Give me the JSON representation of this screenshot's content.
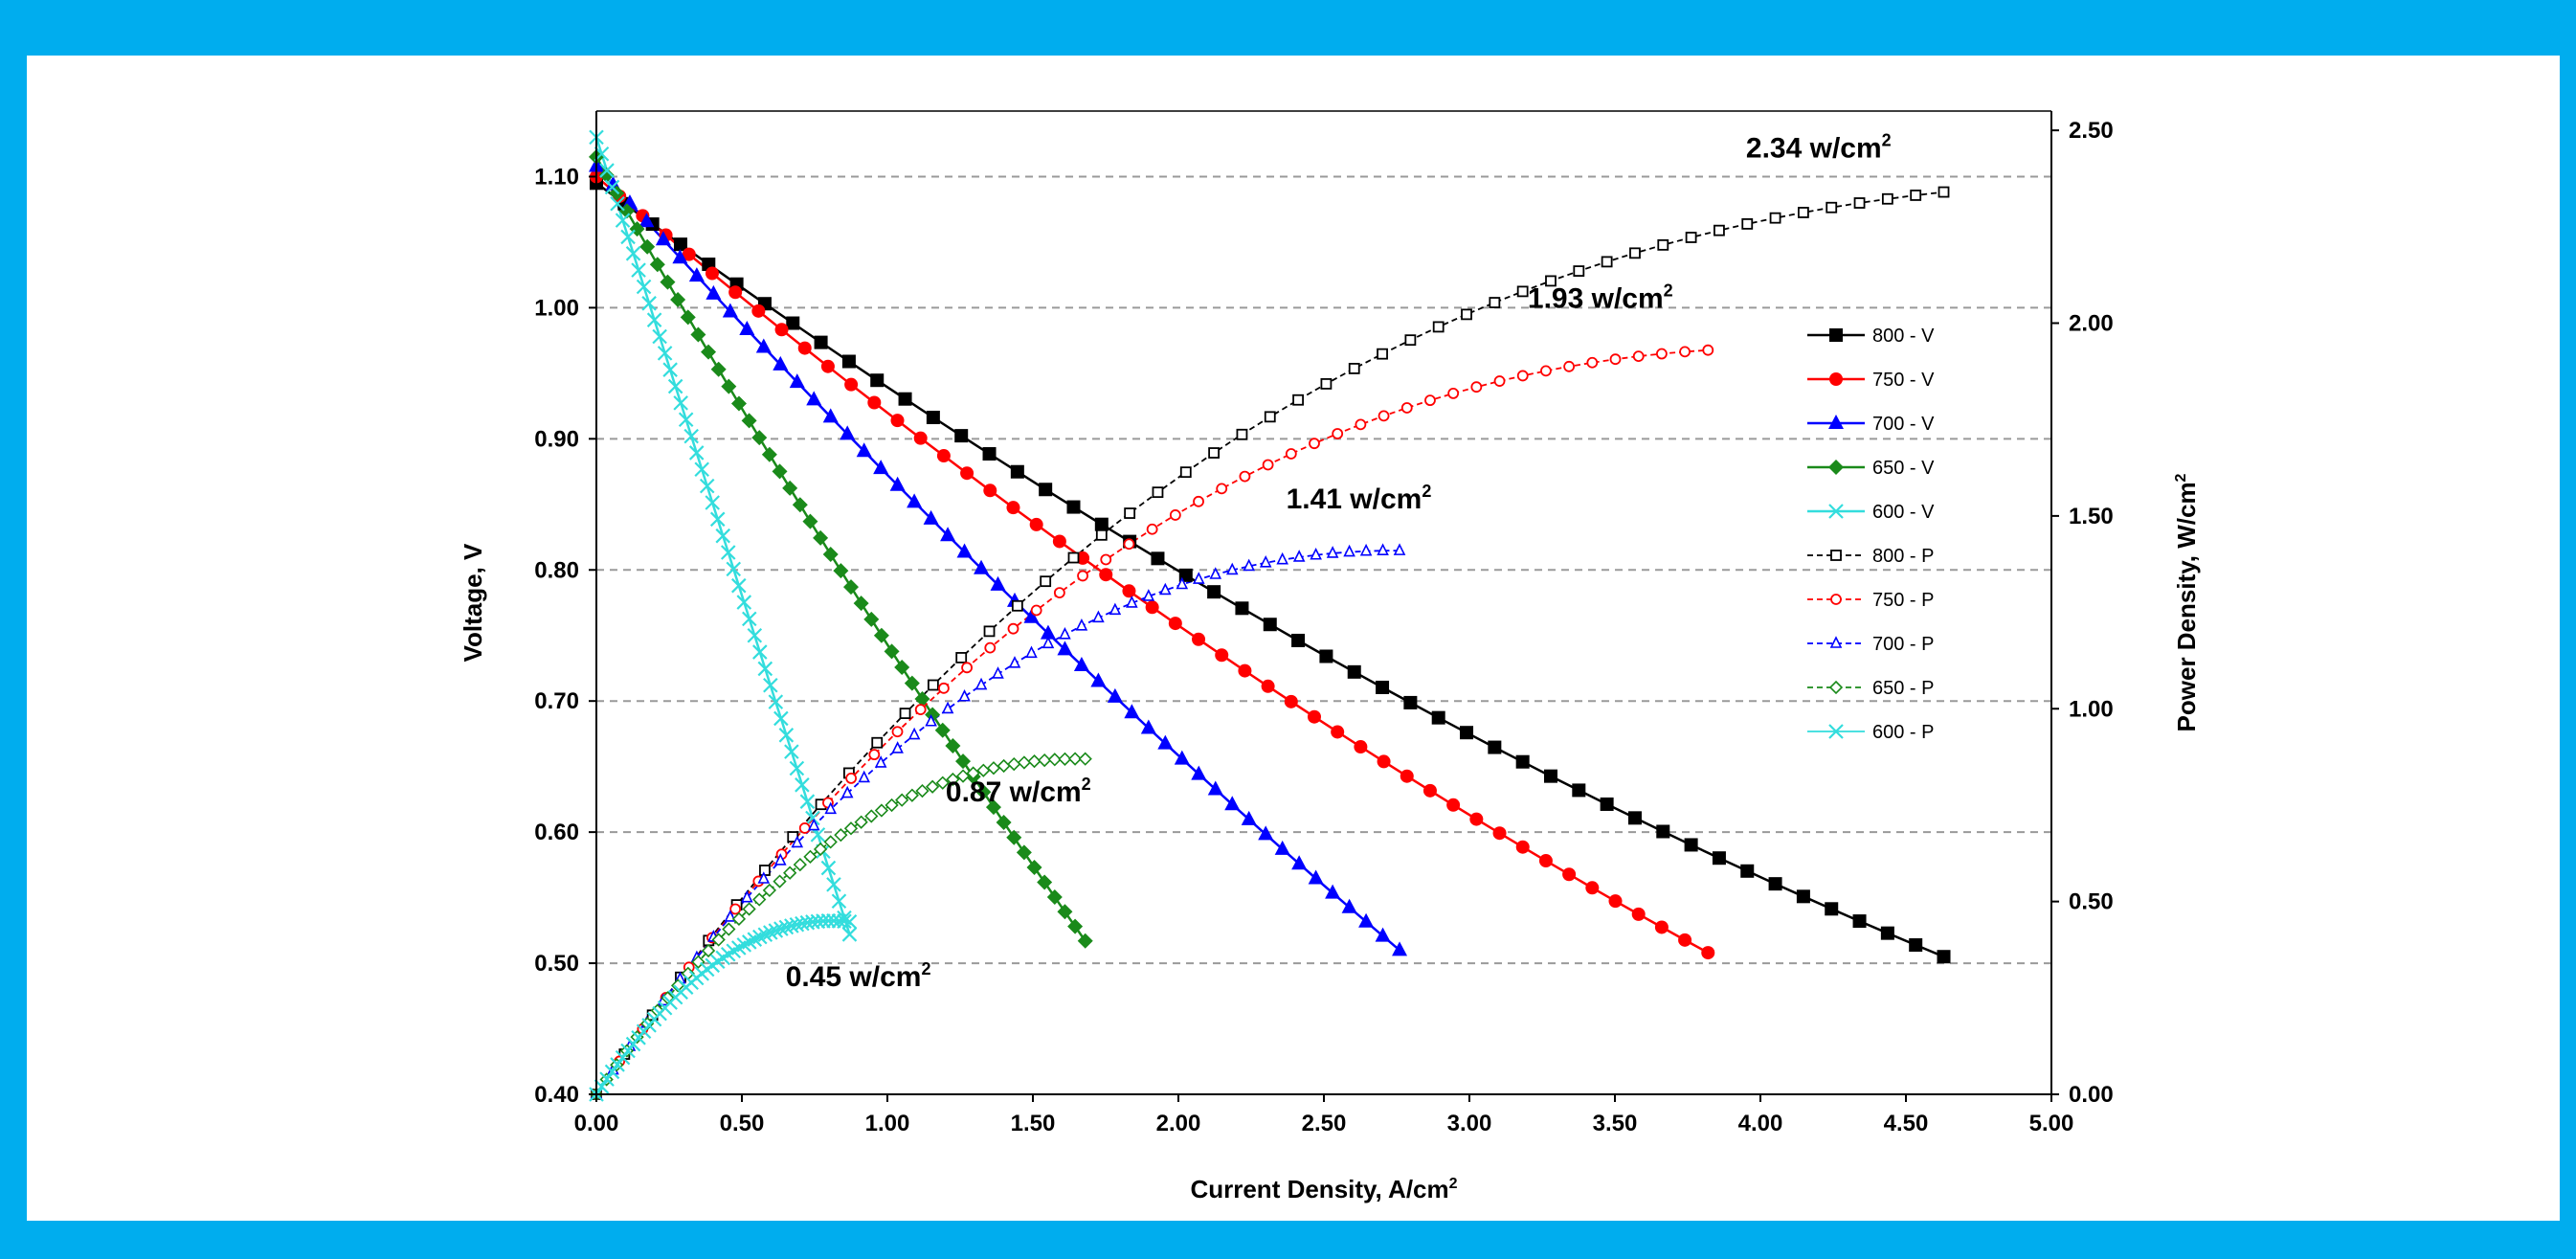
{
  "chart_data": {
    "type": "line",
    "xlabel": "Current Density, A/cm",
    "xlabel_sup": "2",
    "ylabel": "Voltage, V",
    "y2label": "Power Density, W/cm",
    "y2label_sup": "2",
    "xlim": [
      0,
      5
    ],
    "ylim": [
      0.4,
      1.15
    ],
    "y2lim": [
      0,
      2.55
    ],
    "x_ticks": [
      "0.00",
      "0.50",
      "1.00",
      "1.50",
      "2.00",
      "2.50",
      "3.00",
      "3.50",
      "4.00",
      "4.50",
      "5.00"
    ],
    "y_ticks": [
      "0.40",
      "0.50",
      "0.60",
      "0.70",
      "0.80",
      "0.90",
      "1.00",
      "1.10"
    ],
    "y2_ticks": [
      "0.00",
      "0.50",
      "1.00",
      "1.50",
      "2.00",
      "2.50"
    ],
    "grid": "horizontal dashed",
    "legend_position": "right",
    "series": [
      {
        "name": "800 - V",
        "axis": "left",
        "color": "#000000",
        "marker": "square-filled",
        "x_max": 4.63,
        "v0": 1.095,
        "v_end": 0.505,
        "k": 0.22
      },
      {
        "name": "750 - V",
        "axis": "left",
        "color": "#ff0000",
        "marker": "circle-filled",
        "x_max": 3.82,
        "v0": 1.1,
        "v_end": 0.508,
        "k": 0.18
      },
      {
        "name": "700 - V",
        "axis": "left",
        "color": "#0000ff",
        "marker": "triangle-filled",
        "x_max": 2.76,
        "v0": 1.108,
        "v_end": 0.51,
        "k": 0.12
      },
      {
        "name": "650 - V",
        "axis": "left",
        "color": "#1a8a1a",
        "marker": "diamond-filled",
        "x_max": 1.68,
        "v0": 1.115,
        "v_end": 0.517,
        "k": 0.1
      },
      {
        "name": "600 - V",
        "axis": "left",
        "color": "#33dddd",
        "marker": "x",
        "x_max": 0.87,
        "v0": 1.13,
        "v_end": 0.522,
        "k": 0.0
      },
      {
        "name": "800 - P",
        "axis": "right",
        "color": "#000000",
        "marker": "square-open",
        "dashed": true,
        "x_max": 4.63,
        "p_max": 2.34
      },
      {
        "name": "750 - P",
        "axis": "right",
        "color": "#ff0000",
        "marker": "circle-open",
        "dashed": true,
        "x_max": 3.82,
        "p_max": 1.93
      },
      {
        "name": "700 - P",
        "axis": "right",
        "color": "#0000ff",
        "marker": "triangle-open",
        "dashed": true,
        "x_max": 2.76,
        "p_max": 1.41
      },
      {
        "name": "650 - P",
        "axis": "right",
        "color": "#1a8a1a",
        "marker": "diamond-open",
        "dashed": true,
        "x_max": 1.68,
        "p_max": 0.87
      },
      {
        "name": "600 - P",
        "axis": "right",
        "color": "#33dddd",
        "marker": "x",
        "x_max": 0.87,
        "p_max": 0.45
      }
    ],
    "annotations": [
      {
        "text": "2.34 w/cm",
        "sup": "2",
        "x": 4.2,
        "y2": 2.43
      },
      {
        "text": "1.93 w/cm",
        "sup": "2",
        "x": 3.45,
        "y2": 2.04
      },
      {
        "text": "1.41 w/cm",
        "sup": "2",
        "x": 2.62,
        "y2": 1.52
      },
      {
        "text": "0.87 w/cm",
        "sup": "2",
        "x": 1.45,
        "y2": 0.76
      },
      {
        "text": "0.45 w/cm",
        "sup": "2",
        "x": 0.9,
        "y2": 0.28
      }
    ]
  }
}
